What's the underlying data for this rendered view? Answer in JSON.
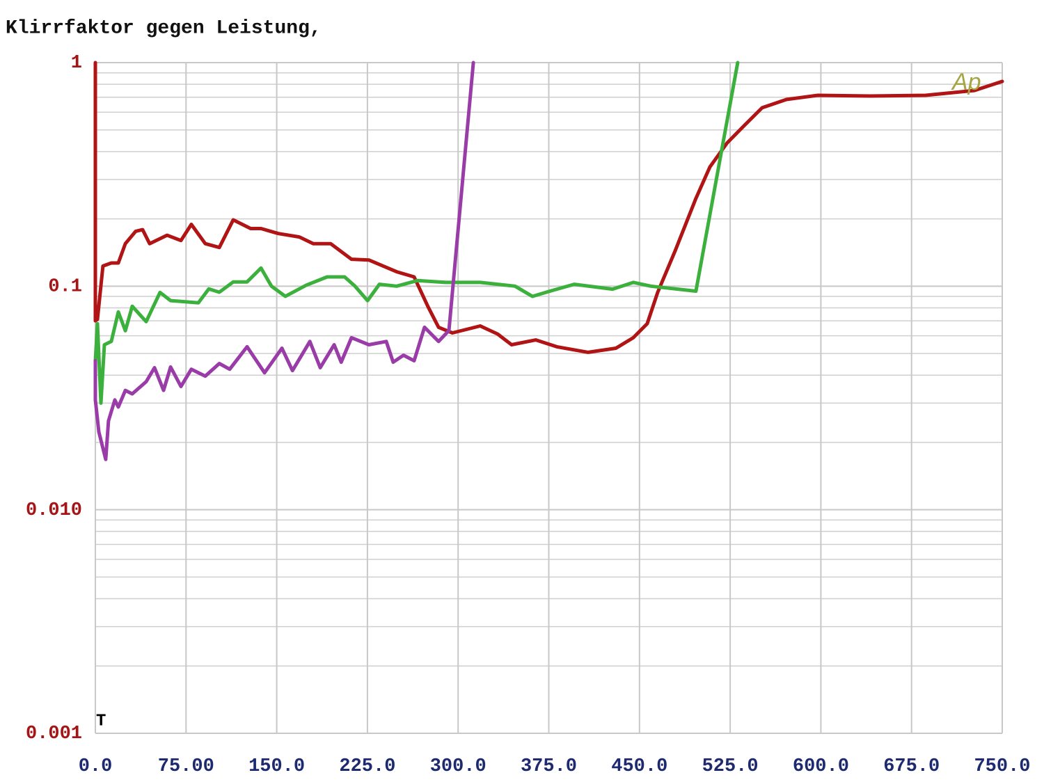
{
  "chart_data": {
    "type": "line",
    "title": "Klirrfaktor gegen Leistung,",
    "annotations": [
      "T",
      "Ap"
    ],
    "log_y": true,
    "grid": true,
    "xlim": [
      0,
      750
    ],
    "ylim": [
      0.001,
      1
    ],
    "xticks": [
      {
        "value": 0,
        "label": "0.0"
      },
      {
        "value": 75,
        "label": "75.00"
      },
      {
        "value": 150,
        "label": "150.0"
      },
      {
        "value": 225,
        "label": "225.0"
      },
      {
        "value": 300,
        "label": "300.0"
      },
      {
        "value": 375,
        "label": "375.0"
      },
      {
        "value": 450,
        "label": "450.0"
      },
      {
        "value": 525,
        "label": "525.0"
      },
      {
        "value": 600,
        "label": "600.0"
      },
      {
        "value": 675,
        "label": "675.0"
      },
      {
        "value": 750,
        "label": "750.0"
      }
    ],
    "yticks": [
      1,
      0.1,
      {
        "value": 0.01,
        "label": "0.010"
      },
      0.001
    ],
    "series": [
      {
        "color": "#b01414",
        "x": [
          0,
          0,
          1.7,
          6.3,
          13.2,
          19,
          24.8,
          33.4,
          39.1,
          44.9,
          59.3,
          70.8,
          79.4,
          90.9,
          102.5,
          114,
          128.4,
          137,
          151.4,
          168.7,
          180.2,
          194.6,
          211.8,
          226.2,
          249.2,
          263.6,
          275.1,
          283.8,
          295.3,
          318.3,
          332.7,
          344.2,
          364.3,
          381.6,
          407.5,
          430.5,
          444.9,
          456.4,
          465,
          479.5,
          496.7,
          508.2,
          522.6,
          537,
          551.4,
          571.5,
          597.4,
          640.6,
          686.6,
          726.9,
          750
        ],
        "values": [
          1,
          0.07,
          0.071,
          0.123,
          0.127,
          0.127,
          0.155,
          0.176,
          0.179,
          0.155,
          0.169,
          0.16,
          0.189,
          0.155,
          0.149,
          0.198,
          0.181,
          0.181,
          0.172,
          0.166,
          0.155,
          0.155,
          0.132,
          0.131,
          0.116,
          0.11,
          0.081,
          0.0655,
          0.0618,
          0.0664,
          0.0611,
          0.0547,
          0.0575,
          0.0536,
          0.0506,
          0.0528,
          0.0588,
          0.068,
          0.0938,
          0.144,
          0.247,
          0.341,
          0.438,
          0.525,
          0.628,
          0.684,
          0.714,
          0.709,
          0.714,
          0.75,
          0.824
        ]
      },
      {
        "color": "#3cb03c",
        "x": [
          0,
          1.7,
          4.6,
          7.5,
          13.2,
          19,
          24.8,
          30.5,
          42,
          53.5,
          62.2,
          85.2,
          93.8,
          102.5,
          114,
          125.5,
          137,
          145.6,
          157.1,
          174.4,
          191.7,
          206.1,
          214.7,
          225.1,
          234.9,
          249.2,
          266.5,
          289.5,
          318.3,
          347.1,
          361.5,
          375.9,
          396,
          427.7,
          445,
          459.4,
          496.7,
          531.2
        ],
        "values": [
          0.0464,
          0.068,
          0.03,
          0.0547,
          0.0566,
          0.0767,
          0.0632,
          0.0813,
          0.0694,
          0.0938,
          0.0862,
          0.0843,
          0.0972,
          0.094,
          0.1045,
          0.1045,
          0.1205,
          0.1,
          0.0901,
          0.101,
          0.11,
          0.11,
          0.1,
          0.0862,
          0.102,
          0.1,
          0.106,
          0.104,
          0.104,
          0.1,
          0.09,
          0.095,
          0.102,
          0.097,
          0.104,
          0.1,
          0.095,
          1
        ]
      },
      {
        "color": "#9a3ca8",
        "x": [
          0,
          0,
          2.9,
          8.6,
          10.9,
          16.1,
          19,
          24.8,
          30.5,
          42,
          48.9,
          56.4,
          62.2,
          70.8,
          79.4,
          90.9,
          102.5,
          111.1,
          125.5,
          139.9,
          154.3,
          163,
          177.4,
          186,
          197.5,
          203.3,
          211.8,
          226.2,
          240.6,
          246.3,
          254.9,
          263.6,
          272.2,
          283.8,
          292.4,
          312.6
        ],
        "values": [
          0.0464,
          0.031,
          0.0223,
          0.0168,
          0.025,
          0.031,
          0.0288,
          0.0342,
          0.033,
          0.0374,
          0.0432,
          0.0342,
          0.0435,
          0.0356,
          0.0425,
          0.0396,
          0.0451,
          0.0425,
          0.0536,
          0.041,
          0.0528,
          0.0419,
          0.0566,
          0.0432,
          0.0547,
          0.0457,
          0.0588,
          0.0547,
          0.0566,
          0.0457,
          0.0491,
          0.0464,
          0.0655,
          0.0566,
          0.0633,
          1
        ]
      }
    ]
  }
}
